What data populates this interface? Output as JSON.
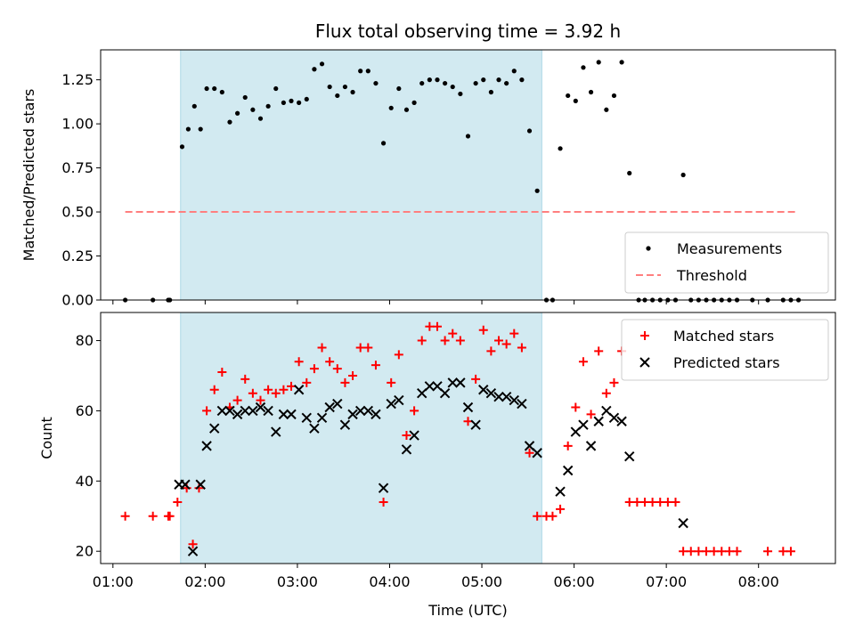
{
  "chart_data": {
    "title": "Flux total observing time = 3.92 h",
    "xlabel": "Time (UTC)",
    "x_unit": "UTC time",
    "xlim": [
      "00:52",
      "08:50"
    ],
    "x_tick_labels": [
      "01:00",
      "02:00",
      "03:00",
      "04:00",
      "05:00",
      "06:00",
      "07:00",
      "08:00"
    ],
    "shaded_interval": {
      "from": "01:44",
      "to": "05:39",
      "color": "#add8e6"
    },
    "panels": [
      {
        "name": "ratio",
        "type": "scatter",
        "ylabel": "Matched/Predicted stars",
        "ylim": [
          0,
          1.42
        ],
        "y_ticks": [
          "0.00",
          "0.25",
          "0.50",
          "0.75",
          "1.00",
          "1.25"
        ],
        "legend_position": "lower-right",
        "series": [
          {
            "name": "Measurements",
            "marker": "dot",
            "color": "#000000",
            "points": [
              [
                "01:08",
                0.0
              ],
              [
                "01:26",
                0.0
              ],
              [
                "01:36",
                0.0
              ],
              [
                "01:37",
                0.0
              ],
              [
                "01:45",
                0.87
              ],
              [
                "01:49",
                0.97
              ],
              [
                "01:53",
                1.1
              ],
              [
                "01:57",
                0.97
              ],
              [
                "02:01",
                1.2
              ],
              [
                "02:06",
                1.2
              ],
              [
                "02:11",
                1.18
              ],
              [
                "02:16",
                1.01
              ],
              [
                "02:21",
                1.06
              ],
              [
                "02:26",
                1.15
              ],
              [
                "02:31",
                1.08
              ],
              [
                "02:36",
                1.03
              ],
              [
                "02:41",
                1.1
              ],
              [
                "02:46",
                1.2
              ],
              [
                "02:51",
                1.12
              ],
              [
                "02:56",
                1.13
              ],
              [
                "03:01",
                1.12
              ],
              [
                "03:06",
                1.14
              ],
              [
                "03:11",
                1.31
              ],
              [
                "03:16",
                1.34
              ],
              [
                "03:21",
                1.21
              ],
              [
                "03:26",
                1.16
              ],
              [
                "03:31",
                1.21
              ],
              [
                "03:36",
                1.18
              ],
              [
                "03:41",
                1.3
              ],
              [
                "03:46",
                1.3
              ],
              [
                "03:51",
                1.23
              ],
              [
                "03:56",
                0.89
              ],
              [
                "04:01",
                1.09
              ],
              [
                "04:06",
                1.2
              ],
              [
                "04:11",
                1.08
              ],
              [
                "04:16",
                1.12
              ],
              [
                "04:21",
                1.23
              ],
              [
                "04:26",
                1.25
              ],
              [
                "04:31",
                1.25
              ],
              [
                "04:36",
                1.23
              ],
              [
                "04:41",
                1.21
              ],
              [
                "04:46",
                1.17
              ],
              [
                "04:51",
                0.93
              ],
              [
                "04:56",
                1.23
              ],
              [
                "05:01",
                1.25
              ],
              [
                "05:06",
                1.18
              ],
              [
                "05:11",
                1.25
              ],
              [
                "05:16",
                1.23
              ],
              [
                "05:21",
                1.3
              ],
              [
                "05:26",
                1.25
              ],
              [
                "05:31",
                0.96
              ],
              [
                "05:36",
                0.62
              ],
              [
                "05:42",
                0.0
              ],
              [
                "05:46",
                0.0
              ],
              [
                "05:51",
                0.86
              ],
              [
                "05:56",
                1.16
              ],
              [
                "06:01",
                1.13
              ],
              [
                "06:06",
                1.32
              ],
              [
                "06:11",
                1.18
              ],
              [
                "06:16",
                1.35
              ],
              [
                "06:21",
                1.08
              ],
              [
                "06:26",
                1.16
              ],
              [
                "06:31",
                1.35
              ],
              [
                "06:36",
                0.72
              ],
              [
                "06:42",
                0.0
              ],
              [
                "06:46",
                0.0
              ],
              [
                "06:51",
                0.0
              ],
              [
                "06:56",
                0.0
              ],
              [
                "07:01",
                0.0
              ],
              [
                "07:06",
                0.0
              ],
              [
                "07:11",
                0.71
              ],
              [
                "07:16",
                0.0
              ],
              [
                "07:21",
                0.0
              ],
              [
                "07:26",
                0.0
              ],
              [
                "07:31",
                0.0
              ],
              [
                "07:36",
                0.0
              ],
              [
                "07:41",
                0.0
              ],
              [
                "07:46",
                0.0
              ],
              [
                "07:56",
                0.0
              ],
              [
                "08:06",
                0.0
              ],
              [
                "08:16",
                0.0
              ],
              [
                "08:21",
                0.0
              ],
              [
                "08:26",
                0.0
              ]
            ]
          },
          {
            "name": "Threshold",
            "marker": "dashed-line",
            "color": "#ff7f7f",
            "points": [
              [
                "01:08",
                0.5
              ],
              [
                "08:26",
                0.5
              ]
            ]
          }
        ]
      },
      {
        "name": "count",
        "type": "scatter",
        "ylabel": "Count",
        "ylim": [
          16.5,
          88
        ],
        "y_ticks": [
          "20",
          "40",
          "60",
          "80"
        ],
        "legend_position": "upper-right",
        "series": [
          {
            "name": "Matched stars",
            "marker": "plus",
            "color": "#ff0000",
            "points": [
              [
                "01:08",
                30
              ],
              [
                "01:26",
                30
              ],
              [
                "01:36",
                30
              ],
              [
                "01:37",
                30
              ],
              [
                "01:42",
                34
              ],
              [
                "01:48",
                38
              ],
              [
                "01:52",
                22
              ],
              [
                "01:56",
                38
              ],
              [
                "02:01",
                60
              ],
              [
                "02:06",
                66
              ],
              [
                "02:11",
                71
              ],
              [
                "02:16",
                61
              ],
              [
                "02:21",
                63
              ],
              [
                "02:26",
                69
              ],
              [
                "02:31",
                65
              ],
              [
                "02:36",
                63
              ],
              [
                "02:41",
                66
              ],
              [
                "02:46",
                65
              ],
              [
                "02:51",
                66
              ],
              [
                "02:56",
                67
              ],
              [
                "03:01",
                74
              ],
              [
                "03:06",
                68
              ],
              [
                "03:11",
                72
              ],
              [
                "03:16",
                78
              ],
              [
                "03:21",
                74
              ],
              [
                "03:26",
                72
              ],
              [
                "03:31",
                68
              ],
              [
                "03:36",
                70
              ],
              [
                "03:41",
                78
              ],
              [
                "03:46",
                78
              ],
              [
                "03:51",
                73
              ],
              [
                "03:56",
                34
              ],
              [
                "04:01",
                68
              ],
              [
                "04:06",
                76
              ],
              [
                "04:11",
                53
              ],
              [
                "04:16",
                60
              ],
              [
                "04:21",
                80
              ],
              [
                "04:26",
                84
              ],
              [
                "04:31",
                84
              ],
              [
                "04:36",
                80
              ],
              [
                "04:41",
                82
              ],
              [
                "04:46",
                80
              ],
              [
                "04:51",
                57
              ],
              [
                "04:56",
                69
              ],
              [
                "05:01",
                83
              ],
              [
                "05:06",
                77
              ],
              [
                "05:11",
                80
              ],
              [
                "05:16",
                79
              ],
              [
                "05:21",
                82
              ],
              [
                "05:26",
                78
              ],
              [
                "05:31",
                48
              ],
              [
                "05:36",
                30
              ],
              [
                "05:42",
                30
              ],
              [
                "05:46",
                30
              ],
              [
                "05:51",
                32
              ],
              [
                "05:56",
                50
              ],
              [
                "06:01",
                61
              ],
              [
                "06:06",
                74
              ],
              [
                "06:11",
                59
              ],
              [
                "06:16",
                77
              ],
              [
                "06:21",
                65
              ],
              [
                "06:26",
                68
              ],
              [
                "06:31",
                77
              ],
              [
                "06:36",
                34
              ],
              [
                "06:41",
                34
              ],
              [
                "06:46",
                34
              ],
              [
                "06:51",
                34
              ],
              [
                "06:56",
                34
              ],
              [
                "07:01",
                34
              ],
              [
                "07:06",
                34
              ],
              [
                "07:11",
                20
              ],
              [
                "07:16",
                20
              ],
              [
                "07:21",
                20
              ],
              [
                "07:26",
                20
              ],
              [
                "07:31",
                20
              ],
              [
                "07:36",
                20
              ],
              [
                "07:41",
                20
              ],
              [
                "07:46",
                20
              ],
              [
                "08:06",
                20
              ],
              [
                "08:16",
                20
              ],
              [
                "08:21",
                20
              ]
            ]
          },
          {
            "name": "Predicted stars",
            "marker": "x",
            "color": "#000000",
            "points": [
              [
                "01:43",
                39
              ],
              [
                "01:47",
                39
              ],
              [
                "01:52",
                20
              ],
              [
                "01:57",
                39
              ],
              [
                "02:01",
                50
              ],
              [
                "02:06",
                55
              ],
              [
                "02:11",
                60
              ],
              [
                "02:16",
                60
              ],
              [
                "02:21",
                59
              ],
              [
                "02:26",
                60
              ],
              [
                "02:31",
                60
              ],
              [
                "02:36",
                61
              ],
              [
                "02:41",
                60
              ],
              [
                "02:46",
                54
              ],
              [
                "02:51",
                59
              ],
              [
                "02:56",
                59
              ],
              [
                "03:01",
                66
              ],
              [
                "03:06",
                58
              ],
              [
                "03:11",
                55
              ],
              [
                "03:16",
                58
              ],
              [
                "03:21",
                61
              ],
              [
                "03:26",
                62
              ],
              [
                "03:31",
                56
              ],
              [
                "03:36",
                59
              ],
              [
                "03:41",
                60
              ],
              [
                "03:46",
                60
              ],
              [
                "03:51",
                59
              ],
              [
                "03:56",
                38
              ],
              [
                "04:01",
                62
              ],
              [
                "04:06",
                63
              ],
              [
                "04:11",
                49
              ],
              [
                "04:16",
                53
              ],
              [
                "04:21",
                65
              ],
              [
                "04:26",
                67
              ],
              [
                "04:31",
                67
              ],
              [
                "04:36",
                65
              ],
              [
                "04:41",
                68
              ],
              [
                "04:46",
                68
              ],
              [
                "04:51",
                61
              ],
              [
                "04:56",
                56
              ],
              [
                "05:01",
                66
              ],
              [
                "05:06",
                65
              ],
              [
                "05:11",
                64
              ],
              [
                "05:16",
                64
              ],
              [
                "05:21",
                63
              ],
              [
                "05:26",
                62
              ],
              [
                "05:31",
                50
              ],
              [
                "05:36",
                48
              ],
              [
                "05:51",
                37
              ],
              [
                "05:56",
                43
              ],
              [
                "06:01",
                54
              ],
              [
                "06:06",
                56
              ],
              [
                "06:11",
                50
              ],
              [
                "06:16",
                57
              ],
              [
                "06:21",
                60
              ],
              [
                "06:26",
                58
              ],
              [
                "06:31",
                57
              ],
              [
                "06:36",
                47
              ],
              [
                "07:11",
                28
              ]
            ]
          }
        ]
      }
    ]
  }
}
